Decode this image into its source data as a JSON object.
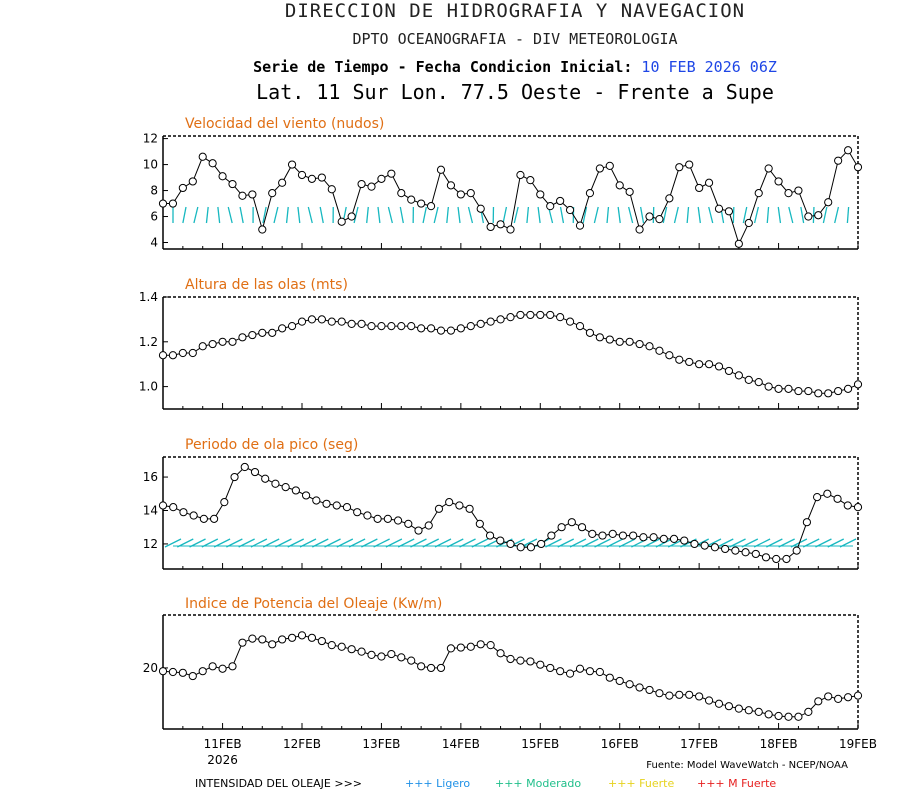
{
  "header": {
    "line1": "DIRECCION DE HIDROGRAFIA Y NAVEGACION",
    "line2": "DPTO OCEANOGRAFIA - DIV METEOROLOGIA",
    "line3_label": "Serie de Tiempo - Fecha Condicion Inicial:",
    "line3_date": "10 FEB 2026 06Z",
    "line4": "Lat. 11 Sur  Lon. 77.5 Oeste - Frente a Supe"
  },
  "x_axis": {
    "ticks": [
      "11FEB",
      "12FEB",
      "13FEB",
      "14FEB",
      "15FEB",
      "16FEB",
      "17FEB",
      "18FEB",
      "19FEB"
    ],
    "sublabel": "2026",
    "xmin_days": -0.75,
    "xmax_days": 8.0
  },
  "footer": {
    "source": "Fuente: Model WaveWatch - NCEP/NOAA",
    "legend_title": "INTENSIDAD DEL OLEAJE >>>",
    "legend_items": [
      {
        "label": "+++ Ligero",
        "color": "#1e90e6"
      },
      {
        "label": "+++ Moderado",
        "color": "#1fbf8a"
      },
      {
        "label": "+++ Fuerte",
        "color": "#e6d21e"
      },
      {
        "label": "+++ M Fuerte",
        "color": "#e61e1e"
      }
    ]
  },
  "chart_data": [
    {
      "type": "line",
      "title": "Velocidad del viento (nudos)",
      "ylim": [
        3.5,
        12.2
      ],
      "yticks": [
        4,
        6,
        8,
        10,
        12
      ],
      "arrow_color": "#17b8c0",
      "series": [
        {
          "values": [
            7.0,
            7.0,
            8.2,
            8.7,
            10.6,
            10.1,
            9.1,
            8.5,
            7.6,
            7.7,
            5.0,
            7.8,
            8.6,
            10.0,
            9.2,
            8.9,
            9.0,
            8.1,
            5.6,
            6.0,
            8.5,
            8.3,
            8.9,
            9.3,
            7.8,
            7.3,
            7.0,
            6.8,
            9.6,
            8.4,
            7.7,
            7.8,
            6.6,
            5.2,
            5.4,
            5.0,
            9.2,
            8.8,
            7.7,
            6.8,
            7.2,
            6.5,
            5.3,
            7.8,
            9.7,
            9.9,
            8.4,
            7.9,
            5.0,
            6.0,
            5.8,
            7.4,
            9.8,
            10.0,
            8.2,
            8.6,
            6.6,
            6.4,
            3.9,
            5.5,
            7.8,
            9.7,
            8.7,
            7.8,
            8.0,
            6.0,
            6.1,
            7.1,
            10.3,
            11.1,
            9.8
          ]
        }
      ]
    },
    {
      "type": "line",
      "title": "Altura de las olas (mts)",
      "ylim": [
        0.9,
        1.4
      ],
      "yticks": [
        1.0,
        1.2,
        1.4
      ],
      "series": [
        {
          "values": [
            1.14,
            1.14,
            1.15,
            1.15,
            1.18,
            1.19,
            1.2,
            1.2,
            1.22,
            1.23,
            1.24,
            1.24,
            1.26,
            1.27,
            1.29,
            1.3,
            1.3,
            1.29,
            1.29,
            1.28,
            1.28,
            1.27,
            1.27,
            1.27,
            1.27,
            1.27,
            1.26,
            1.26,
            1.25,
            1.25,
            1.26,
            1.27,
            1.28,
            1.29,
            1.3,
            1.31,
            1.32,
            1.32,
            1.32,
            1.32,
            1.31,
            1.29,
            1.27,
            1.24,
            1.22,
            1.21,
            1.2,
            1.2,
            1.19,
            1.18,
            1.16,
            1.14,
            1.12,
            1.11,
            1.1,
            1.1,
            1.09,
            1.07,
            1.05,
            1.03,
            1.02,
            1.0,
            0.99,
            0.99,
            0.98,
            0.98,
            0.97,
            0.97,
            0.98,
            0.99,
            1.01
          ]
        }
      ]
    },
    {
      "type": "line",
      "title": "Periodo de ola pico (seg)",
      "ylim": [
        10.5,
        17.2
      ],
      "yticks": [
        12,
        14,
        16
      ],
      "arrow_color": "#17b8c0",
      "series": [
        {
          "values": [
            14.3,
            14.2,
            13.9,
            13.7,
            13.5,
            13.5,
            14.5,
            16.0,
            16.6,
            16.3,
            15.9,
            15.6,
            15.4,
            15.2,
            14.9,
            14.6,
            14.4,
            14.3,
            14.2,
            13.9,
            13.7,
            13.5,
            13.5,
            13.4,
            13.2,
            12.8,
            13.1,
            14.1,
            14.5,
            14.3,
            14.1,
            13.2,
            12.5,
            12.2,
            12.0,
            11.8,
            11.8,
            12.0,
            12.5,
            13.0,
            13.3,
            13.0,
            12.6,
            12.5,
            12.6,
            12.5,
            12.5,
            12.4,
            12.4,
            12.3,
            12.3,
            12.2,
            12.0,
            11.9,
            11.8,
            11.7,
            11.6,
            11.5,
            11.4,
            11.2,
            11.1,
            11.1,
            11.6,
            13.3,
            14.8,
            15.0,
            14.7,
            14.3,
            14.2
          ]
        }
      ]
    },
    {
      "type": "line",
      "title": "Indice de Potencia del Oleaje (Kw/m)",
      "ylim": [
        12.5,
        26.5
      ],
      "yticks": [
        20
      ],
      "series": [
        {
          "values": [
            19.6,
            19.5,
            19.4,
            19.0,
            19.6,
            20.2,
            19.9,
            20.2,
            23.1,
            23.6,
            23.5,
            22.9,
            23.5,
            23.7,
            24.0,
            23.7,
            23.3,
            22.8,
            22.6,
            22.3,
            22.0,
            21.6,
            21.4,
            21.7,
            21.3,
            20.9,
            20.2,
            20.0,
            20.0,
            22.4,
            22.5,
            22.6,
            22.9,
            22.8,
            21.8,
            21.1,
            20.9,
            20.8,
            20.4,
            20.0,
            19.6,
            19.3,
            19.9,
            19.6,
            19.5,
            18.8,
            18.4,
            18.0,
            17.6,
            17.3,
            16.9,
            16.6,
            16.7,
            16.7,
            16.5,
            16.0,
            15.6,
            15.3,
            15.0,
            14.8,
            14.6,
            14.3,
            14.1,
            14.0,
            14.0,
            14.6,
            15.9,
            16.5,
            16.2,
            16.4,
            16.6
          ]
        }
      ]
    }
  ]
}
